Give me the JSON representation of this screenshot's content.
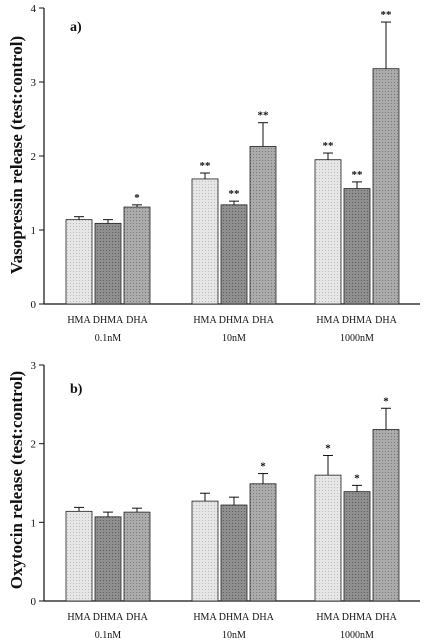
{
  "chart_data": [
    {
      "type": "bar",
      "panel_label": "a)",
      "ylabel": "Vasopressin release (test:control)",
      "ylim": [
        0,
        4
      ],
      "yticks": [
        "0",
        "1",
        "2",
        "3",
        "4"
      ],
      "bar_labels": [
        "HMA",
        "DHMA",
        "DHA"
      ],
      "groups": [
        "0.1nM",
        "10nM",
        "1000nM"
      ],
      "series": [
        {
          "name": "HMA",
          "values": [
            1.14,
            1.69,
            1.95
          ],
          "errors": [
            0.04,
            0.08,
            0.09
          ],
          "sig": [
            "",
            "**",
            "**"
          ]
        },
        {
          "name": "DHMA",
          "values": [
            1.09,
            1.34,
            1.56
          ],
          "errors": [
            0.05,
            0.05,
            0.09
          ],
          "sig": [
            "",
            "**",
            "**"
          ]
        },
        {
          "name": "DHA",
          "values": [
            1.31,
            2.13,
            3.18
          ],
          "errors": [
            0.03,
            0.32,
            0.63
          ],
          "sig": [
            "*",
            "**",
            "**"
          ]
        }
      ]
    },
    {
      "type": "bar",
      "panel_label": "b)",
      "ylabel": "Oxytocin release (test:control)",
      "ylim": [
        0,
        3
      ],
      "yticks": [
        "0",
        "1",
        "2",
        "3"
      ],
      "bar_labels": [
        "HMA",
        "DHMA",
        "DHA"
      ],
      "groups": [
        "0.1nM",
        "10nM",
        "1000nM"
      ],
      "series": [
        {
          "name": "HMA",
          "values": [
            1.14,
            1.27,
            1.6
          ],
          "errors": [
            0.05,
            0.1,
            0.25
          ],
          "sig": [
            "",
            "",
            "*"
          ]
        },
        {
          "name": "DHMA",
          "values": [
            1.07,
            1.22,
            1.39
          ],
          "errors": [
            0.06,
            0.1,
            0.08
          ],
          "sig": [
            "",
            "",
            "*"
          ]
        },
        {
          "name": "DHA",
          "values": [
            1.13,
            1.49,
            2.18
          ],
          "errors": [
            0.05,
            0.13,
            0.27
          ],
          "sig": [
            "",
            "*",
            "*"
          ]
        }
      ]
    }
  ],
  "colors": {
    "HMA": "#dcdcdc",
    "DHMA": "#8a8a8a",
    "DHA": "#a9a9a9",
    "axis": "#111111"
  }
}
